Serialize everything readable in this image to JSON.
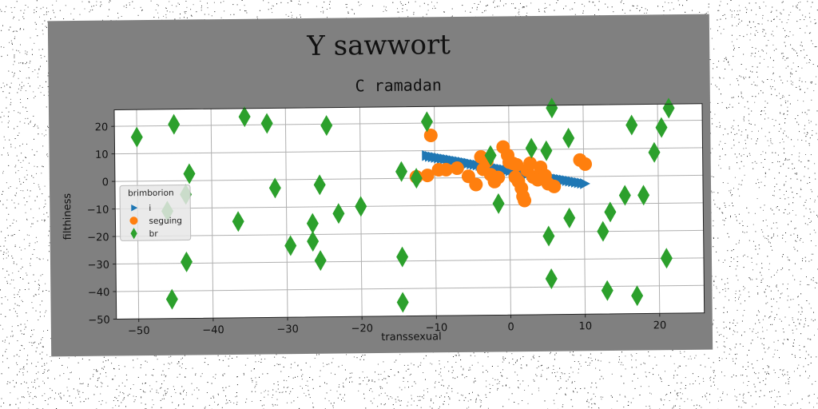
{
  "chart_data": {
    "type": "scatter",
    "title": "Y sawwort",
    "subtitle": "C ramadan",
    "xlabel": "transsexual",
    "ylabel": "filthiness",
    "xlim": [
      -53,
      26
    ],
    "ylim": [
      -50,
      26
    ],
    "x_ticks": [
      -50,
      -40,
      -30,
      -20,
      -10,
      0,
      10,
      20
    ],
    "x_tick_labels": [
      "−50",
      "−40",
      "−30",
      "−20",
      "−10",
      "0",
      "10",
      "20"
    ],
    "y_ticks": [
      20,
      10,
      0,
      -10,
      -20,
      -30,
      -40,
      -50
    ],
    "y_tick_labels": [
      "20",
      "10",
      "0",
      "−10",
      "−20",
      "−30",
      "−40",
      "−50"
    ],
    "grid": true,
    "legend": {
      "title": "brimborion",
      "placement": "center-left",
      "entries": [
        "i",
        "seguing",
        "br"
      ]
    },
    "series": [
      {
        "name": "i",
        "marker": "triangle-right",
        "color": "#1f77b4",
        "points": [
          [
            -11.2,
            8.2
          ],
          [
            -10.8,
            7.9
          ],
          [
            -10.4,
            7.7
          ],
          [
            -10.0,
            7.5
          ],
          [
            -9.6,
            7.3
          ],
          [
            -9.2,
            7.1
          ],
          [
            -8.8,
            6.9
          ],
          [
            -8.4,
            6.7
          ],
          [
            -8.0,
            6.5
          ],
          [
            -7.6,
            6.3
          ],
          [
            -7.2,
            6.1
          ],
          [
            -6.8,
            5.9
          ],
          [
            -6.4,
            5.7
          ],
          [
            -6.0,
            5.5
          ],
          [
            -5.6,
            5.3
          ],
          [
            -5.2,
            5.0
          ],
          [
            -4.8,
            4.8
          ],
          [
            -4.4,
            4.6
          ],
          [
            -4.0,
            4.4
          ],
          [
            -3.6,
            4.2
          ],
          [
            -3.2,
            4.0
          ],
          [
            -2.8,
            3.8
          ],
          [
            -2.4,
            3.6
          ],
          [
            -2.0,
            3.4
          ],
          [
            -1.6,
            3.2
          ],
          [
            -1.2,
            3.0
          ],
          [
            -0.8,
            2.8
          ],
          [
            -0.4,
            2.6
          ],
          [
            0.0,
            2.4
          ],
          [
            0.4,
            2.2
          ],
          [
            0.8,
            2.0
          ],
          [
            1.2,
            1.8
          ],
          [
            1.6,
            1.6
          ],
          [
            2.0,
            1.4
          ],
          [
            2.4,
            1.2
          ],
          [
            2.8,
            1.0
          ],
          [
            3.2,
            0.8
          ],
          [
            3.6,
            0.6
          ],
          [
            4.0,
            0.4
          ],
          [
            4.4,
            0.2
          ],
          [
            4.8,
            0.0
          ],
          [
            5.2,
            -0.2
          ],
          [
            5.6,
            -0.4
          ],
          [
            6.0,
            -0.6
          ],
          [
            6.4,
            -0.8
          ],
          [
            6.8,
            -1.0
          ],
          [
            7.2,
            -1.2
          ],
          [
            7.6,
            -1.4
          ],
          [
            8.0,
            -1.6
          ],
          [
            8.4,
            -1.8
          ],
          [
            8.8,
            -2.0
          ],
          [
            9.2,
            -2.2
          ],
          [
            9.6,
            -2.4
          ],
          [
            10.0,
            -2.6
          ]
        ]
      },
      {
        "name": "seguing",
        "marker": "circle",
        "color": "#ff7f0e",
        "points": [
          [
            -10.5,
            15.5
          ],
          [
            -12.5,
            0.5
          ],
          [
            -11.0,
            1.0
          ],
          [
            -9.5,
            3.0
          ],
          [
            -8.5,
            3.0
          ],
          [
            -7.0,
            3.5
          ],
          [
            -5.5,
            0.5
          ],
          [
            -4.5,
            -2.5
          ],
          [
            -3.8,
            7.5
          ],
          [
            -3.5,
            3.0
          ],
          [
            -3.0,
            6.0
          ],
          [
            -2.0,
            -1.5
          ],
          [
            -1.5,
            0.0
          ],
          [
            -0.8,
            11.0
          ],
          [
            -0.2,
            8.0
          ],
          [
            0.0,
            5.5
          ],
          [
            0.5,
            5.0
          ],
          [
            1.0,
            4.5
          ],
          [
            1.2,
            -1.5
          ],
          [
            1.6,
            -4.0
          ],
          [
            1.8,
            -7.0
          ],
          [
            2.0,
            -8.5
          ],
          [
            2.4,
            2.5
          ],
          [
            2.8,
            5.0
          ],
          [
            3.2,
            0.0
          ],
          [
            3.8,
            -1.0
          ],
          [
            4.2,
            3.5
          ],
          [
            4.8,
            0.5
          ],
          [
            5.2,
            -2.5
          ],
          [
            6.0,
            -3.5
          ],
          [
            9.5,
            6.0
          ],
          [
            10.2,
            4.5
          ],
          [
            0.8,
            0.0
          ],
          [
            -2.5,
            1.0
          ]
        ]
      },
      {
        "name": "br",
        "marker": "diamond",
        "color": "#2ca02c",
        "points": [
          [
            -50.0,
            16.0
          ],
          [
            -45.0,
            20.5
          ],
          [
            -43.0,
            2.5
          ],
          [
            -43.5,
            -5.0
          ],
          [
            -46.0,
            -11.0
          ],
          [
            -43.5,
            -29.5
          ],
          [
            -45.5,
            -43.0
          ],
          [
            -36.5,
            -15.0
          ],
          [
            -35.5,
            23.0
          ],
          [
            -32.5,
            20.5
          ],
          [
            -31.5,
            -3.0
          ],
          [
            -29.5,
            -24.0
          ],
          [
            -26.5,
            -16.0
          ],
          [
            -26.5,
            -22.5
          ],
          [
            -25.5,
            -2.0
          ],
          [
            -25.5,
            -29.5
          ],
          [
            -24.5,
            19.5
          ],
          [
            -23.0,
            -12.5
          ],
          [
            -20.0,
            -10.0
          ],
          [
            -14.5,
            2.5
          ],
          [
            -14.5,
            -28.5
          ],
          [
            -14.5,
            -45.0
          ],
          [
            -12.5,
            0.0
          ],
          [
            -11.0,
            20.5
          ],
          [
            -2.5,
            8.0
          ],
          [
            -1.5,
            -9.5
          ],
          [
            3.0,
            10.5
          ],
          [
            5.0,
            9.5
          ],
          [
            5.2,
            -21.5
          ],
          [
            5.5,
            -37.0
          ],
          [
            5.8,
            25.0
          ],
          [
            8.0,
            14.0
          ],
          [
            8.0,
            -15.0
          ],
          [
            12.5,
            -20.0
          ],
          [
            13.0,
            -41.5
          ],
          [
            13.5,
            -13.0
          ],
          [
            15.5,
            -7.0
          ],
          [
            16.5,
            18.5
          ],
          [
            17.0,
            -43.5
          ],
          [
            18.0,
            -7.0
          ],
          [
            19.5,
            8.5
          ],
          [
            20.5,
            17.5
          ],
          [
            21.0,
            -30.0
          ],
          [
            21.5,
            24.5
          ]
        ]
      }
    ]
  },
  "colors": {
    "figure_background": "#808080",
    "axes_background": "#ffffff",
    "grid": "#b0b0b0",
    "i": "#1f77b4",
    "seguing": "#ff7f0e",
    "br": "#2ca02c"
  }
}
